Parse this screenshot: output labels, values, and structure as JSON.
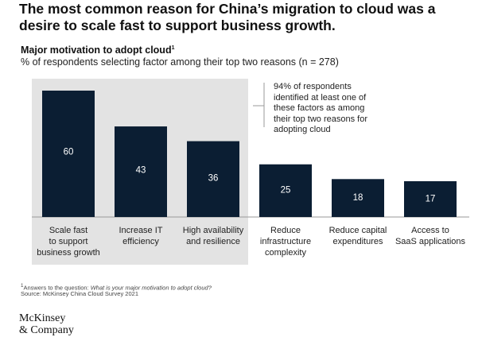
{
  "headline": "The most common reason for China’s migration to cloud was a desire to scale fast to support business growth.",
  "subtitle": "Major motivation to adopt cloud",
  "subtitle_marker": "1",
  "caption": "% of respondents selecting factor among their top two reasons (n = 278)",
  "annotation": "94% of respondents identified at least one of these factors as among their top two reasons for adopting cloud",
  "footnote_marker": "1",
  "footnote_prefix": "Answers to the question: ",
  "footnote_question": "What is your major motivation to adopt cloud?",
  "source": "Source: McKinsey China Cloud Survey 2021",
  "logo_line1": "McKinsey",
  "logo_line2": "& Company",
  "colors": {
    "bar": "#0b1e33",
    "bar_text": "#ffffff",
    "highlight": "#e3e3e3"
  },
  "chart_data": {
    "type": "bar",
    "categories": [
      "Scale fast to support business growth",
      "Increase IT efficiency",
      "High availability and resilience",
      "Reduce infrastructure complexity",
      "Reduce capital expenditures",
      "Access to SaaS applications"
    ],
    "values": [
      60,
      43,
      36,
      25,
      18,
      17
    ],
    "category_lines": [
      [
        "Scale fast",
        "to support",
        "business growth"
      ],
      [
        "Increase IT",
        "efficiency"
      ],
      [
        "High availability",
        "and resilience"
      ],
      [
        "Reduce",
        "infrastructure",
        "complexity"
      ],
      [
        "Reduce capital",
        "expenditures"
      ],
      [
        "Access to",
        "SaaS applications"
      ]
    ],
    "value_labels": [
      "60",
      "43",
      "36",
      "25",
      "18",
      "17"
    ],
    "highlighted_categories": [
      0,
      1,
      2
    ],
    "ylim": [
      0,
      60
    ],
    "grid": false,
    "legend": "none"
  }
}
